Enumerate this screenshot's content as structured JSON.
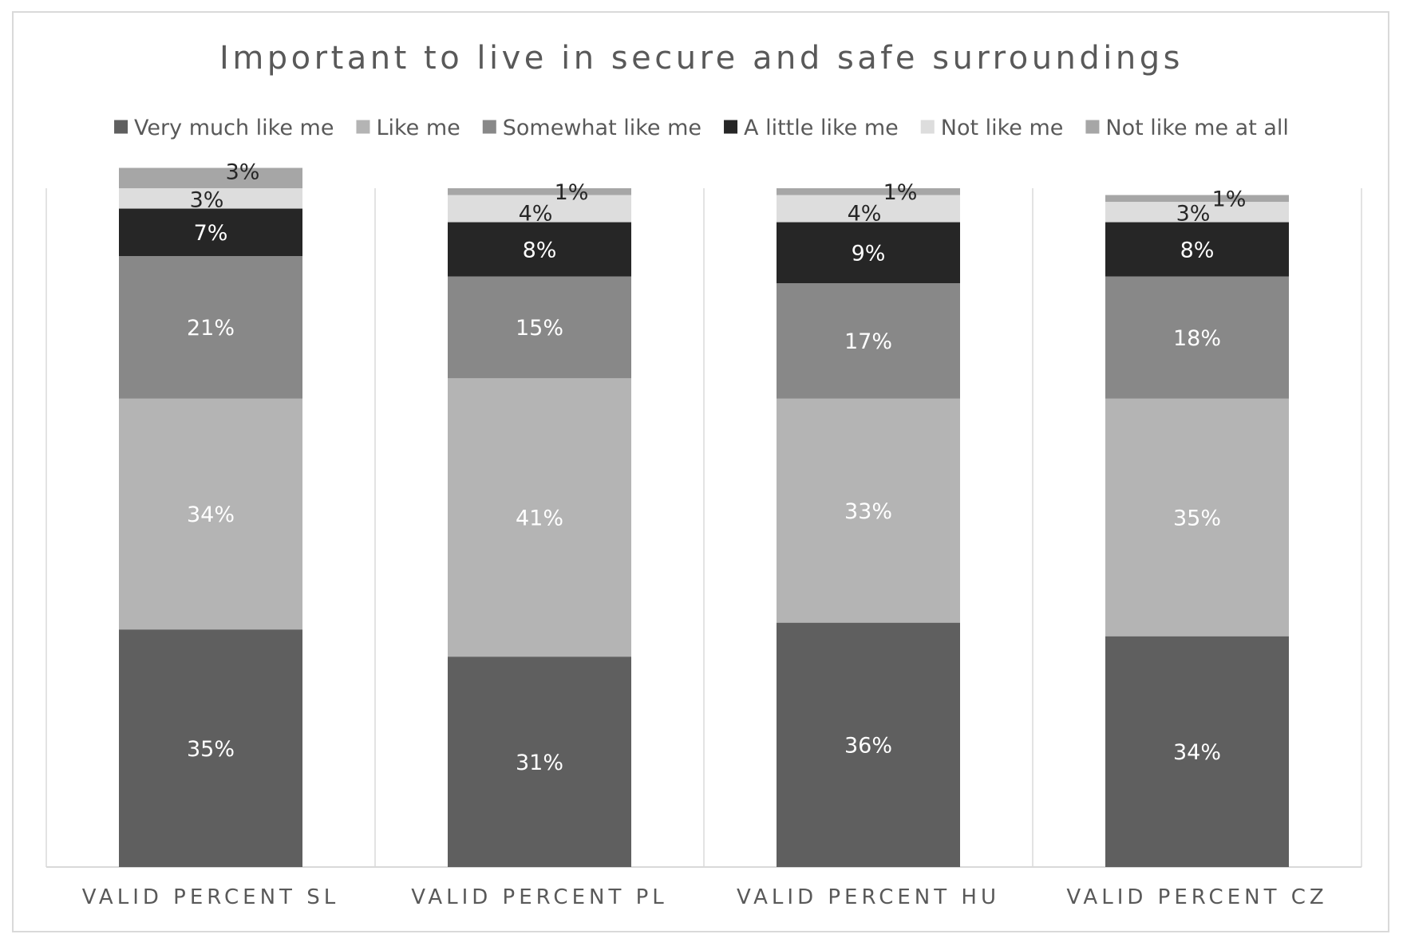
{
  "chart_data": {
    "type": "bar",
    "stacked": true,
    "title": "Important to live in secure and safe surroundings",
    "xlabel": "",
    "ylabel": "",
    "ylim": [
      0,
      100
    ],
    "grid": false,
    "legend_position": "top",
    "categories": [
      "VALID PERCENT SL",
      "VALID PERCENT PL",
      "VALID PERCENT HU",
      "VALID PERCENT CZ"
    ],
    "series": [
      {
        "name": "Very much like me",
        "color": "#5f5f5f",
        "label_color": "#ffffff",
        "values": [
          35,
          31,
          36,
          34
        ],
        "labels": [
          "35%",
          "31%",
          "36%",
          "34%"
        ]
      },
      {
        "name": "Like me",
        "color": "#b4b4b4",
        "label_color": "#ffffff",
        "values": [
          34,
          41,
          33,
          35
        ],
        "labels": [
          "34%",
          "41%",
          "33%",
          "35%"
        ]
      },
      {
        "name": "Somewhat like me",
        "color": "#888888",
        "label_color": "#ffffff",
        "values": [
          21,
          15,
          17,
          18
        ],
        "labels": [
          "21%",
          "15%",
          "17%",
          "18%"
        ]
      },
      {
        "name": "A little like me",
        "color": "#262626",
        "label_color": "#ffffff",
        "values": [
          7,
          8,
          9,
          8
        ],
        "labels": [
          "7%",
          "8%",
          "9%",
          "8%"
        ]
      },
      {
        "name": "Not like me",
        "color": "#dddddd",
        "label_color": "#262626",
        "values": [
          3,
          4,
          4,
          3
        ],
        "labels": [
          "3%",
          "4%",
          "4%",
          "3%"
        ]
      },
      {
        "name": "Not like me at all",
        "color": "#a6a6a6",
        "label_color": "#262626",
        "values": [
          3,
          1,
          1,
          1
        ],
        "labels": [
          "3%",
          "1%",
          "1%",
          "1%"
        ]
      }
    ]
  }
}
